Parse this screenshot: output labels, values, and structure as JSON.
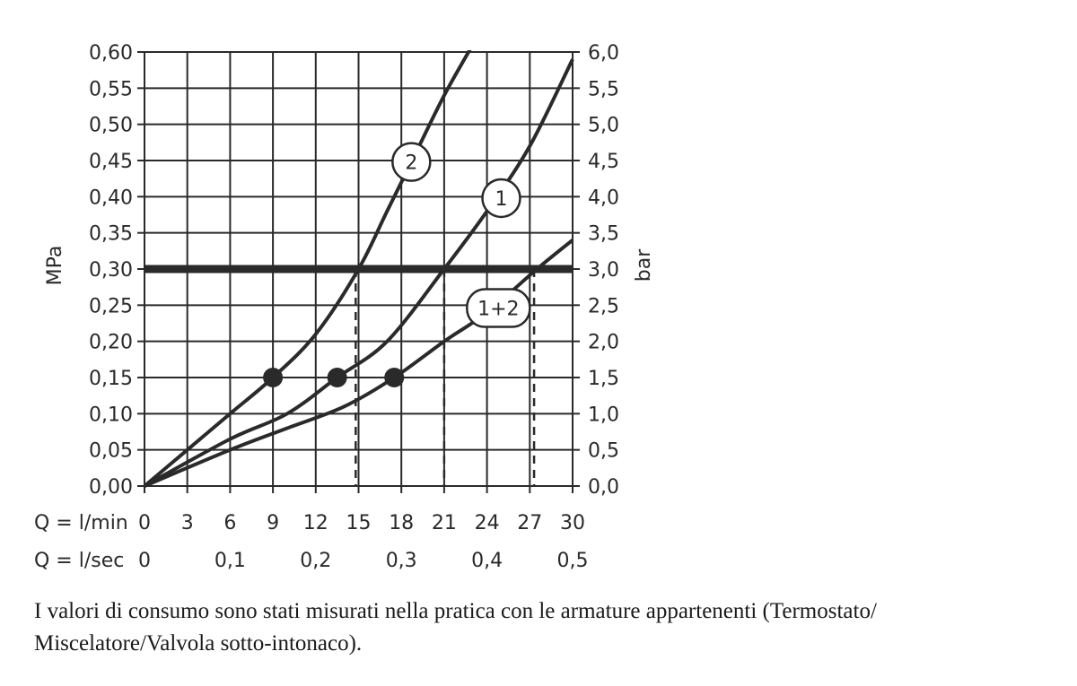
{
  "chart_data": {
    "type": "line",
    "y_left": {
      "label": "MPa",
      "ticks": [
        "0,00",
        "0,05",
        "0,10",
        "0,15",
        "0,20",
        "0,25",
        "0,30",
        "0,35",
        "0,40",
        "0,45",
        "0,50",
        "0,55",
        "0,60"
      ],
      "range": [
        0,
        0.6
      ]
    },
    "y_right": {
      "label": "bar",
      "ticks": [
        "0,0",
        "0,5",
        "1,0",
        "1,5",
        "2,0",
        "2,5",
        "3,0",
        "3,5",
        "4,0",
        "4,5",
        "5,0",
        "5,5",
        "6,0"
      ],
      "range": [
        0,
        6
      ]
    },
    "x_rows": [
      {
        "label": "Q = l/min",
        "ticks": [
          {
            "x": 0,
            "text": "0"
          },
          {
            "x": 3,
            "text": "3"
          },
          {
            "x": 6,
            "text": "6"
          },
          {
            "x": 9,
            "text": "9"
          },
          {
            "x": 12,
            "text": "12"
          },
          {
            "x": 15,
            "text": "15"
          },
          {
            "x": 18,
            "text": "18"
          },
          {
            "x": 21,
            "text": "21"
          },
          {
            "x": 24,
            "text": "24"
          },
          {
            "x": 27,
            "text": "27"
          },
          {
            "x": 30,
            "text": "30"
          }
        ]
      },
      {
        "label": "Q = l/sec",
        "ticks": [
          {
            "x": 0,
            "text": "0"
          },
          {
            "x": 6,
            "text": "0,1"
          },
          {
            "x": 12,
            "text": "0,2"
          },
          {
            "x": 18,
            "text": "0,3"
          },
          {
            "x": 24,
            "text": "0,4"
          },
          {
            "x": 30,
            "text": "0,5"
          }
        ]
      }
    ],
    "x_range": [
      0,
      30
    ],
    "grid": true,
    "reference_line": {
      "y": 0.3
    },
    "series": [
      {
        "name": "2",
        "points": [
          [
            0,
            0
          ],
          [
            3,
            0.05
          ],
          [
            6,
            0.1
          ],
          [
            9,
            0.15
          ],
          [
            12,
            0.21
          ],
          [
            15,
            0.3
          ],
          [
            17,
            0.38
          ],
          [
            19,
            0.46
          ],
          [
            21,
            0.54
          ],
          [
            23,
            0.61
          ]
        ]
      },
      {
        "name": "1",
        "points": [
          [
            0,
            0
          ],
          [
            6,
            0.065
          ],
          [
            10,
            0.1
          ],
          [
            13.5,
            0.15
          ],
          [
            17,
            0.2
          ],
          [
            21,
            0.3
          ],
          [
            24,
            0.38
          ],
          [
            27,
            0.47
          ],
          [
            30,
            0.59
          ]
        ]
      },
      {
        "name": "1+2",
        "points": [
          [
            0,
            0
          ],
          [
            6,
            0.05
          ],
          [
            10,
            0.08
          ],
          [
            14,
            0.11
          ],
          [
            17.5,
            0.15
          ],
          [
            21,
            0.2
          ],
          [
            24,
            0.24
          ],
          [
            27.5,
            0.3
          ],
          [
            30,
            0.34
          ]
        ]
      }
    ],
    "markers": [
      {
        "x": 9,
        "y": 0.15
      },
      {
        "x": 13.5,
        "y": 0.15
      },
      {
        "x": 17.5,
        "y": 0.15
      }
    ],
    "dashed_drops": [
      {
        "x": 14.8,
        "y": 0.3
      },
      {
        "x": 21,
        "y": 0.3
      },
      {
        "x": 27.3,
        "y": 0.3
      }
    ],
    "series_labels": [
      {
        "series": "2",
        "text": "2",
        "x": 18.7,
        "y": 0.448,
        "shape": "circle"
      },
      {
        "series": "1",
        "text": "1",
        "x": 25,
        "y": 0.398,
        "shape": "circle"
      },
      {
        "series": "1+2",
        "text": "1+2",
        "x": 24.8,
        "y": 0.246,
        "shape": "pill"
      }
    ],
    "colors": {
      "ink": "#2a2a2a",
      "grid": "#2a2a2a",
      "background": "#ffffff"
    }
  },
  "caption": "I valori di consumo sono stati misurati nella pratica con le armature appartenenti (Termostato/ Miscelatore/Valvola sotto-intonaco)."
}
